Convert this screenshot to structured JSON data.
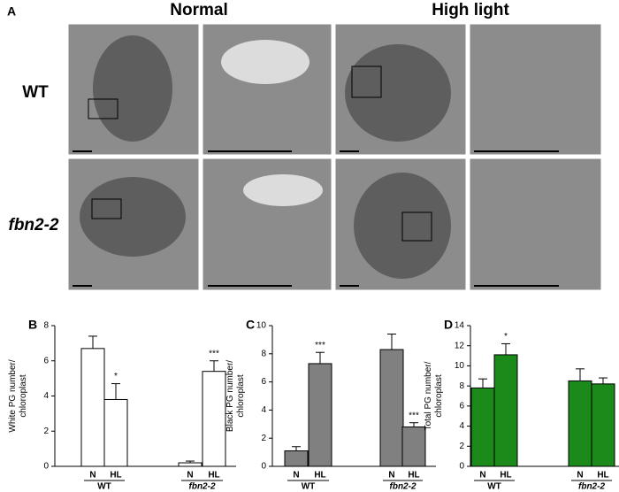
{
  "figure": {
    "panel_a": {
      "label": "A",
      "columns": [
        "Normal",
        "High light"
      ],
      "rows": [
        "WT",
        "fbn2-2"
      ]
    }
  },
  "chart_data": [
    {
      "type": "bar",
      "label": "B",
      "y_label": [
        "White PG number/",
        "chloroplast"
      ],
      "categories": [
        "N",
        "HL",
        "N",
        "HL"
      ],
      "groups": [
        "WT",
        "fbn2-2"
      ],
      "values": [
        6.7,
        3.8,
        0.2,
        5.4
      ],
      "errors": [
        0.7,
        0.9,
        0.1,
        0.6
      ],
      "annotations": [
        null,
        "*",
        null,
        "***"
      ],
      "color": "#ffffff",
      "ylim": [
        0,
        8
      ],
      "yticks": [
        0,
        2,
        4,
        6,
        8
      ]
    },
    {
      "type": "bar",
      "label": "C",
      "y_label": [
        "Black PG number/",
        "chloroplast"
      ],
      "categories": [
        "N",
        "HL",
        "N",
        "HL"
      ],
      "groups": [
        "WT",
        "fbn2-2"
      ],
      "values": [
        1.1,
        7.3,
        8.3,
        2.8
      ],
      "errors": [
        0.3,
        0.8,
        1.1,
        0.3
      ],
      "annotations": [
        null,
        "***",
        null,
        "***"
      ],
      "color": "#808080",
      "ylim": [
        0,
        10
      ],
      "yticks": [
        0,
        2,
        4,
        6,
        8,
        10
      ]
    },
    {
      "type": "bar",
      "label": "D",
      "y_label": [
        "Total PG number/",
        "chloroplast"
      ],
      "categories": [
        "N",
        "HL",
        "N",
        "HL"
      ],
      "groups": [
        "WT",
        "fbn2-2"
      ],
      "values": [
        7.8,
        11.1,
        8.5,
        8.2
      ],
      "errors": [
        0.9,
        1.1,
        1.2,
        0.6
      ],
      "annotations": [
        null,
        "*",
        null,
        null
      ],
      "color": "#1b8a1b",
      "ylim": [
        0,
        14
      ],
      "yticks": [
        0,
        2,
        4,
        6,
        8,
        10,
        12,
        14
      ]
    }
  ]
}
